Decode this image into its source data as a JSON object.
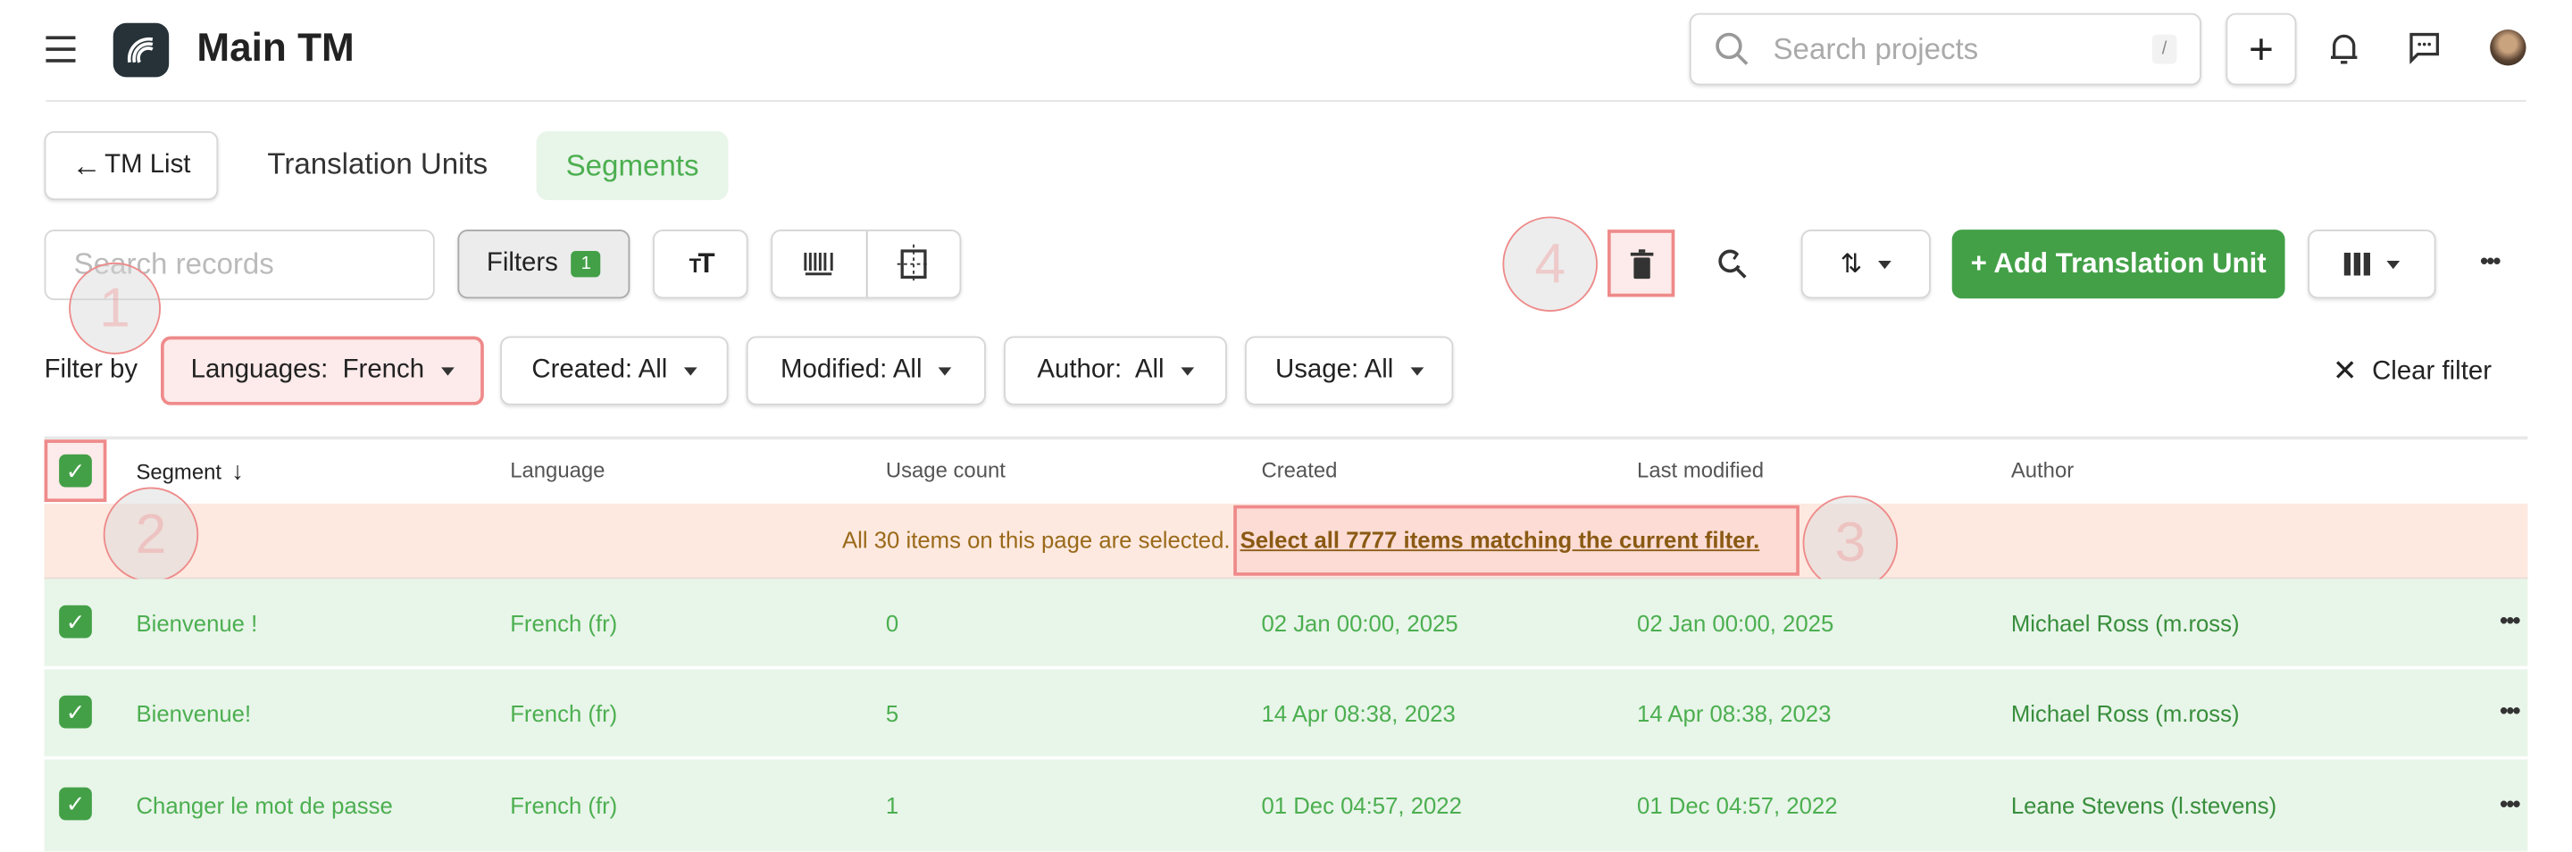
{
  "header": {
    "title": "Main TM",
    "search_placeholder": "Search projects",
    "search_shortcut": "/",
    "icons": [
      "menu-icon",
      "logo",
      "search-icon",
      "plus-icon",
      "bell-icon",
      "chat-icon",
      "avatar"
    ]
  },
  "tabs": {
    "back_label": "TM List",
    "items": [
      {
        "label": "Translation Units",
        "active": false
      },
      {
        "label": "Segments",
        "active": true
      }
    ]
  },
  "toolbar": {
    "search_placeholder": "Search records",
    "filters_label": "Filters",
    "filters_count": "1",
    "add_label": "+ Add Translation Unit",
    "accent": "#43a047"
  },
  "filters": {
    "label": "Filter by",
    "items": [
      "Languages:  French",
      "Created: All",
      "Modified: All",
      "Author:  All",
      "Usage: All"
    ],
    "clear_label": "Clear filter"
  },
  "table": {
    "columns": [
      "Segment",
      "Language",
      "Usage count",
      "Created",
      "Last modified",
      "Author"
    ],
    "banner_text": "All 30 items on this page are selected.",
    "banner_link": "Select all 7777 items matching the current filter.",
    "rows": [
      {
        "segment": "Bienvenue !",
        "language": "French (fr)",
        "usage": "0",
        "created": "02 Jan 00:00, 2025",
        "modified": "02 Jan 00:00, 2025",
        "author": "Michael Ross (m.ross)"
      },
      {
        "segment": "Bienvenue!",
        "language": "French (fr)",
        "usage": "5",
        "created": "14 Apr 08:38, 2023",
        "modified": "14 Apr 08:38, 2023",
        "author": "Michael Ross (m.ross)"
      },
      {
        "segment": "Changer le mot de passe",
        "language": "French (fr)",
        "usage": "1",
        "created": "01 Dec 04:57, 2022",
        "modified": "01 Dec 04:57, 2022",
        "author": "Leane Stevens (l.stevens)"
      }
    ]
  },
  "annotations": [
    "1",
    "2",
    "3",
    "4"
  ]
}
